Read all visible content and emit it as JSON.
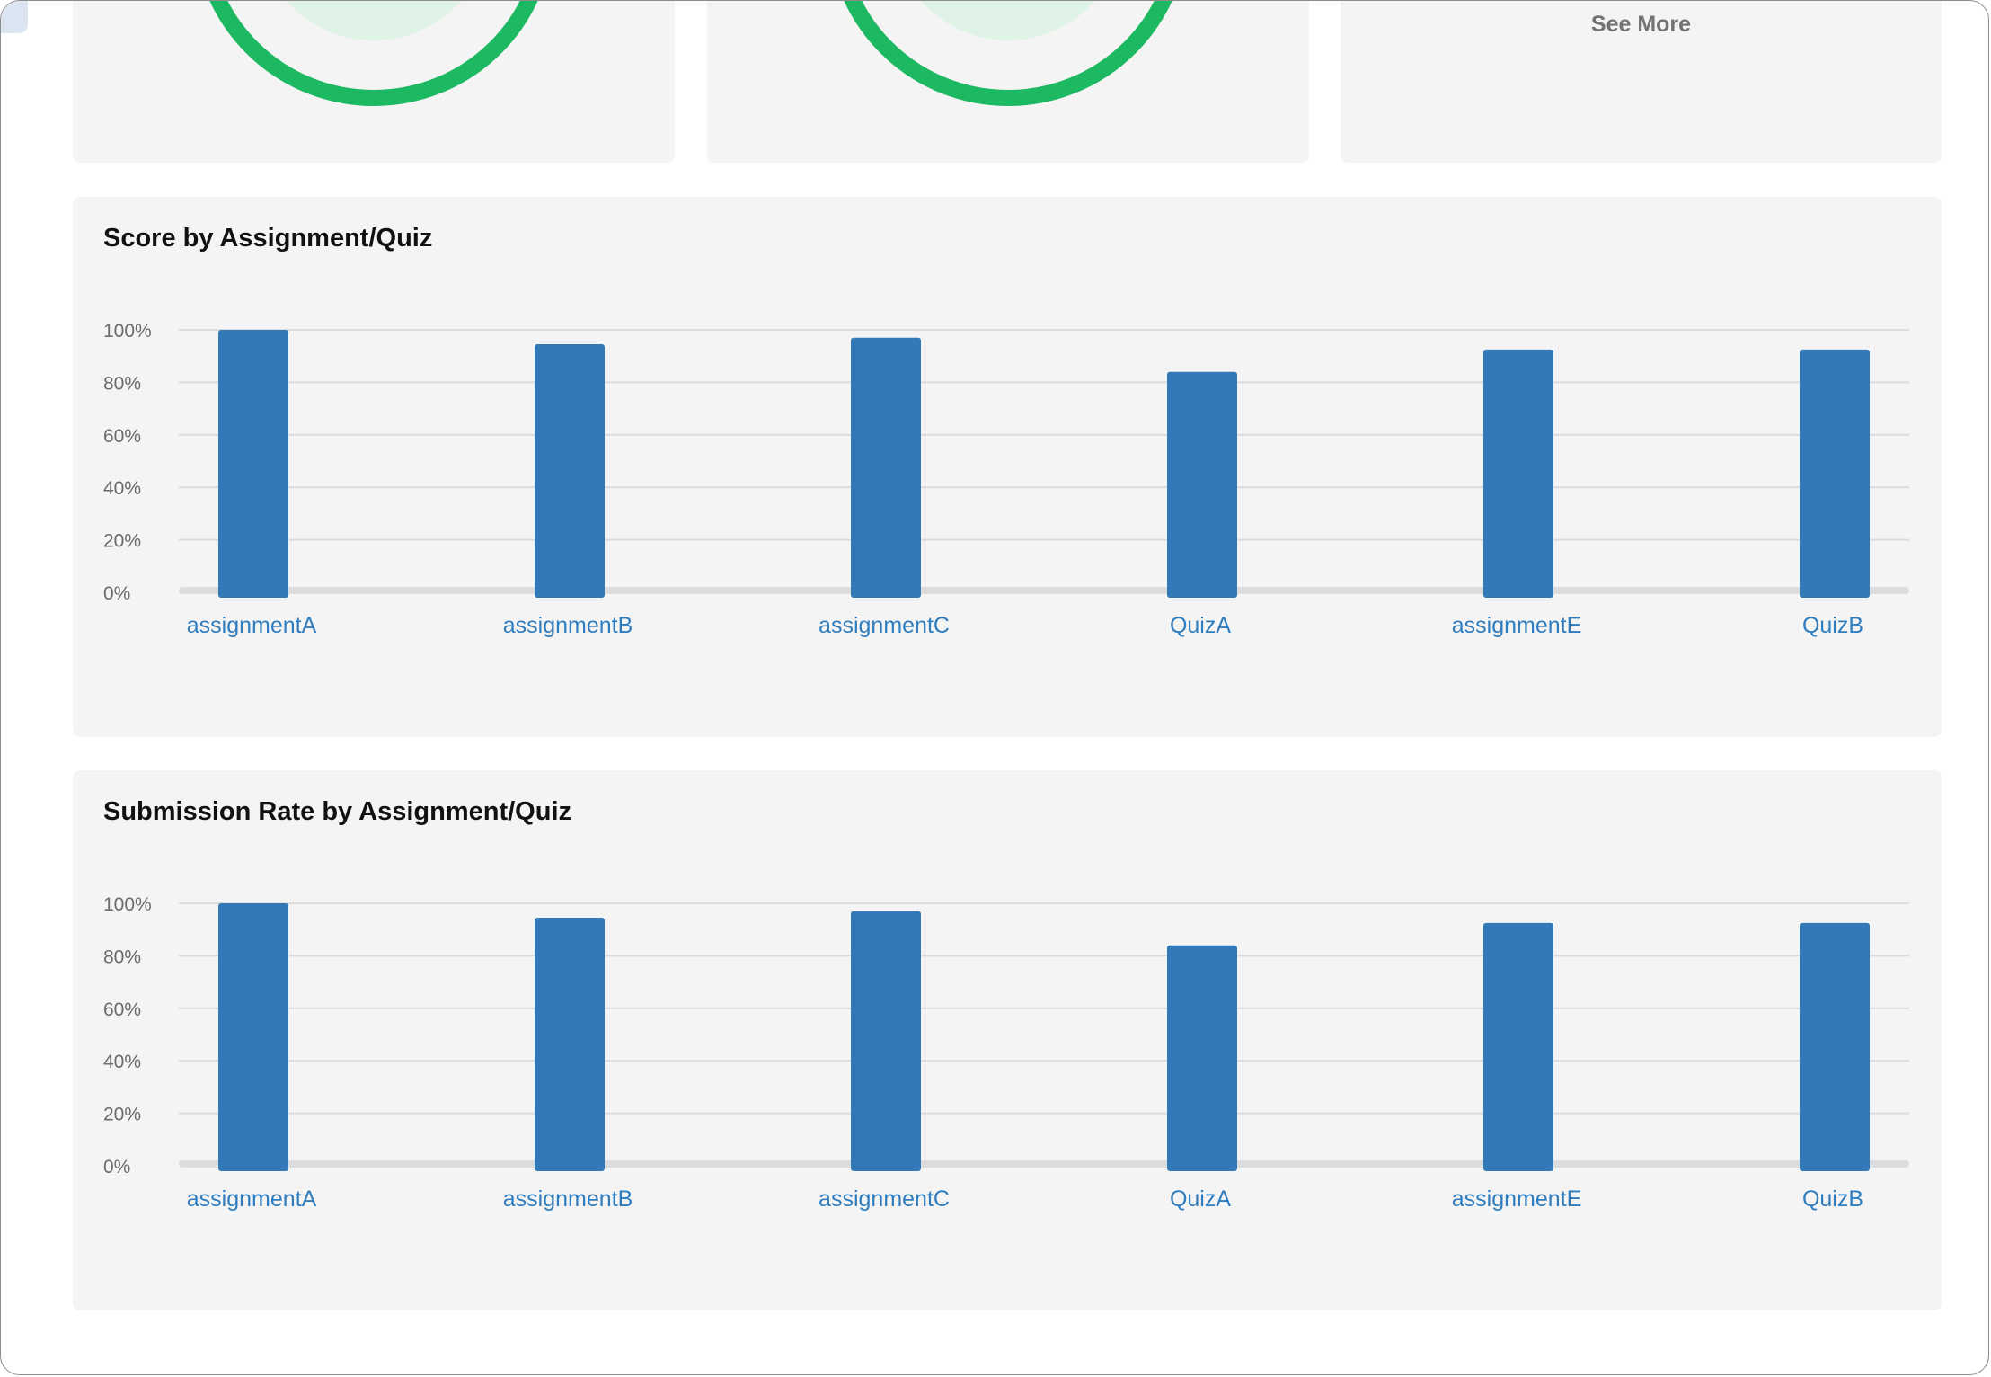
{
  "colors": {
    "ring_green": "#1db862",
    "ring_light": "#dff3e6",
    "bar_blue": "#3379b8",
    "link_blue": "#2f7dbf",
    "card_bg": "#f4f4f4"
  },
  "summary_cards": [
    {
      "icon": "progress-ring-icon"
    },
    {
      "icon": "progress-ring-icon"
    },
    {
      "link_label": "See More"
    }
  ],
  "score_chart": {
    "title": "Score by Assignment/Quiz"
  },
  "submission_chart": {
    "title": "Submission Rate by Assignment/Quiz"
  },
  "chart_data": [
    {
      "type": "bar",
      "title": "Score by Assignment/Quiz",
      "categories": [
        "assignmentA",
        "assignmentB",
        "assignmentC",
        "QuizA",
        "assignmentE",
        "QuizB"
      ],
      "values": [
        100,
        94.5,
        97,
        84,
        92.5,
        92.5
      ],
      "yticks": [
        "0%",
        "20%",
        "40%",
        "60%",
        "80%",
        "100%"
      ],
      "ylim": [
        0,
        100
      ],
      "grid": true,
      "xlabel": "",
      "ylabel": ""
    },
    {
      "type": "bar",
      "title": "Submission Rate by Assignment/Quiz",
      "categories": [
        "assignmentA",
        "assignmentB",
        "assignmentC",
        "QuizA",
        "assignmentE",
        "QuizB"
      ],
      "values": [
        100,
        94.5,
        97,
        84,
        92.5,
        92.5
      ],
      "yticks": [
        "0%",
        "20%",
        "40%",
        "60%",
        "80%",
        "100%"
      ],
      "ylim": [
        0,
        100
      ],
      "grid": true,
      "xlabel": "",
      "ylabel": ""
    }
  ]
}
